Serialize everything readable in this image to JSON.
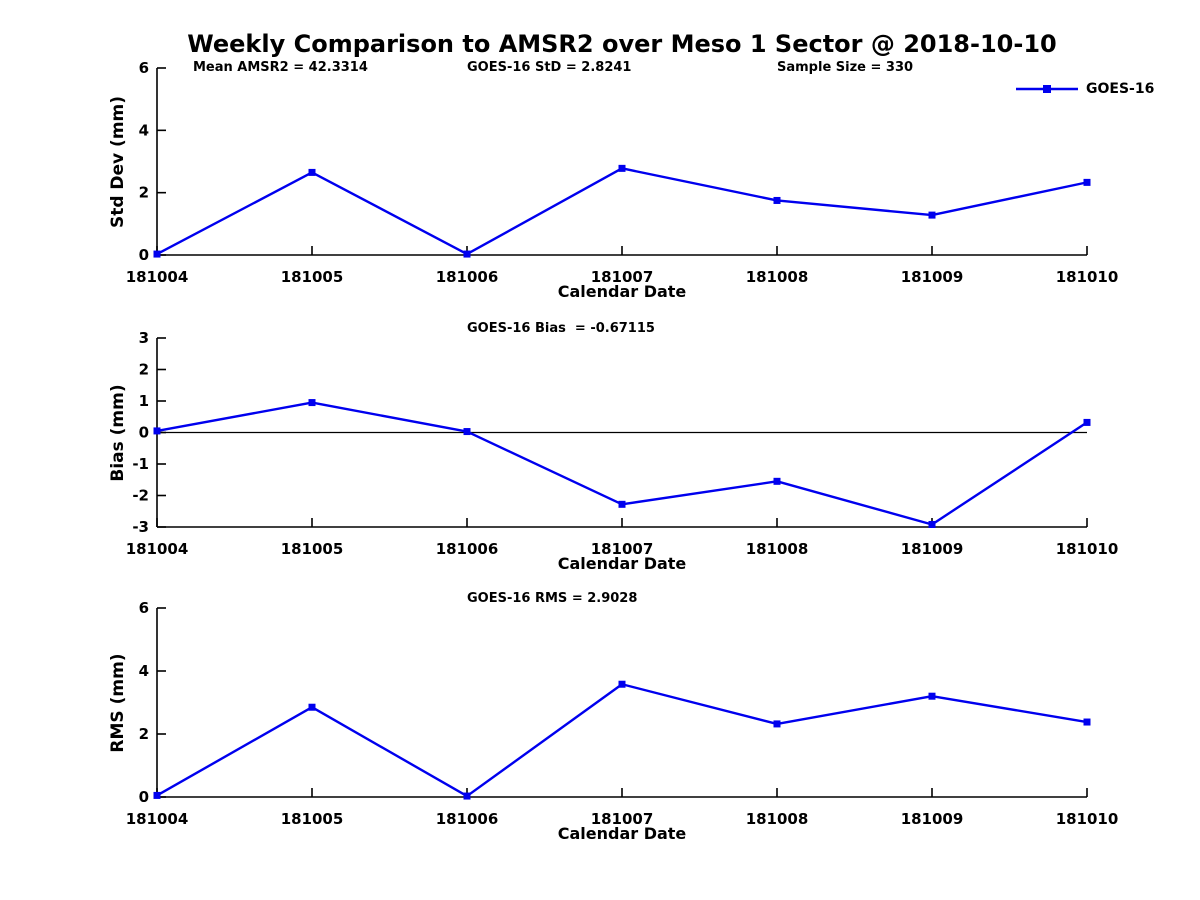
{
  "figure": {
    "title": "Weekly Comparison to AMSR2 over Meso 1 Sector @ 2018-10-10",
    "annotations": [
      {
        "text": "Mean AMSR2 = 42.3314"
      },
      {
        "text": "GOES-16 StD = 2.8241"
      },
      {
        "text": "Sample Size = 330"
      }
    ],
    "legend": {
      "label": "GOES-16"
    },
    "colors": {
      "series": "#0000EE",
      "axis": "#000000",
      "background": "#FFFFFF",
      "text": "#000000"
    }
  },
  "chart_data": [
    {
      "type": "line",
      "title": "",
      "ylabel": "Std Dev (mm)",
      "xlabel": "Calendar Date",
      "categories": [
        "181004",
        "181005",
        "181006",
        "181007",
        "181008",
        "181009",
        "181010"
      ],
      "series": [
        {
          "name": "GOES-16",
          "color": "#0000EE",
          "marker": "square",
          "values": [
            0.03,
            2.65,
            0.03,
            2.78,
            1.75,
            1.28,
            2.33
          ]
        }
      ],
      "ylim": [
        0,
        6
      ],
      "yticks": [
        0,
        2,
        4,
        6
      ],
      "zero_line": false,
      "grid": false,
      "legend_position": "top-right-outside"
    },
    {
      "type": "line",
      "title": "GOES-16 Bias  = -0.67115",
      "ylabel": "Bias (mm)",
      "xlabel": "Calendar Date",
      "categories": [
        "181004",
        "181005",
        "181006",
        "181007",
        "181008",
        "181009",
        "181010"
      ],
      "series": [
        {
          "name": "GOES-16",
          "color": "#0000EE",
          "marker": "square",
          "values": [
            0.05,
            0.95,
            0.03,
            -2.28,
            -1.55,
            -2.92,
            0.32
          ]
        }
      ],
      "ylim": [
        -3,
        3
      ],
      "yticks": [
        -3,
        -2,
        -1,
        0,
        1,
        2,
        3
      ],
      "zero_line": true,
      "grid": false
    },
    {
      "type": "line",
      "title": "GOES-16 RMS = 2.9028",
      "ylabel": "RMS (mm)",
      "xlabel": "Calendar Date",
      "categories": [
        "181004",
        "181005",
        "181006",
        "181007",
        "181008",
        "181009",
        "181010"
      ],
      "series": [
        {
          "name": "GOES-16",
          "color": "#0000EE",
          "marker": "square",
          "values": [
            0.05,
            2.85,
            0.03,
            3.58,
            2.32,
            3.2,
            2.38
          ]
        }
      ],
      "ylim": [
        0,
        6
      ],
      "yticks": [
        0,
        2,
        4,
        6
      ],
      "zero_line": false,
      "grid": false
    }
  ]
}
